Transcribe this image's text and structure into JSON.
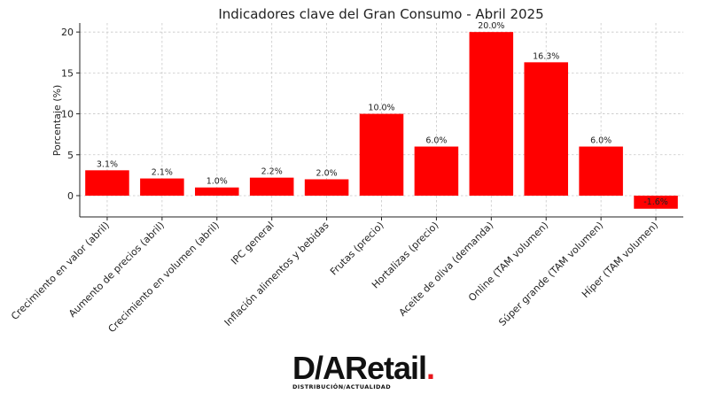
{
  "chart_data": {
    "type": "bar",
    "title": "Indicadores clave del Gran Consumo - Abril 2025",
    "xlabel": "",
    "ylabel": "Porcentaje (%)",
    "ylim": [
      -2.6,
      21.1
    ],
    "yticks": [
      0,
      5,
      10,
      15,
      20
    ],
    "grid": true,
    "bar_color": "#ff0000",
    "categories": [
      "Crecimiento en valor (abril)",
      "Aumento de precios (abril)",
      "Crecimiento en volumen (abril)",
      "IPC general",
      "Inflación alimentos y bebidas",
      "Frutas (precio)",
      "Hortalizas (precio)",
      "Aceite de oliva (demanda)",
      "Online (TAM volumen)",
      "Súper grande (TAM volumen)",
      "Híper (TAM volumen)"
    ],
    "values": [
      3.1,
      2.1,
      1.0,
      2.2,
      2.0,
      10.0,
      6.0,
      20.0,
      16.3,
      6.0,
      -1.6
    ],
    "data_labels": [
      "3.1%",
      "2.1%",
      "1.0%",
      "2.2%",
      "2.0%",
      "10.0%",
      "6.0%",
      "20.0%",
      "16.3%",
      "6.0%",
      "-1.6%"
    ]
  },
  "logo": {
    "brand_prefix": "D/A",
    "brand_name": "Retail",
    "brand_dot": ".",
    "tagline": "DISTRIBUCIÓN/ACTUALIDAD"
  }
}
